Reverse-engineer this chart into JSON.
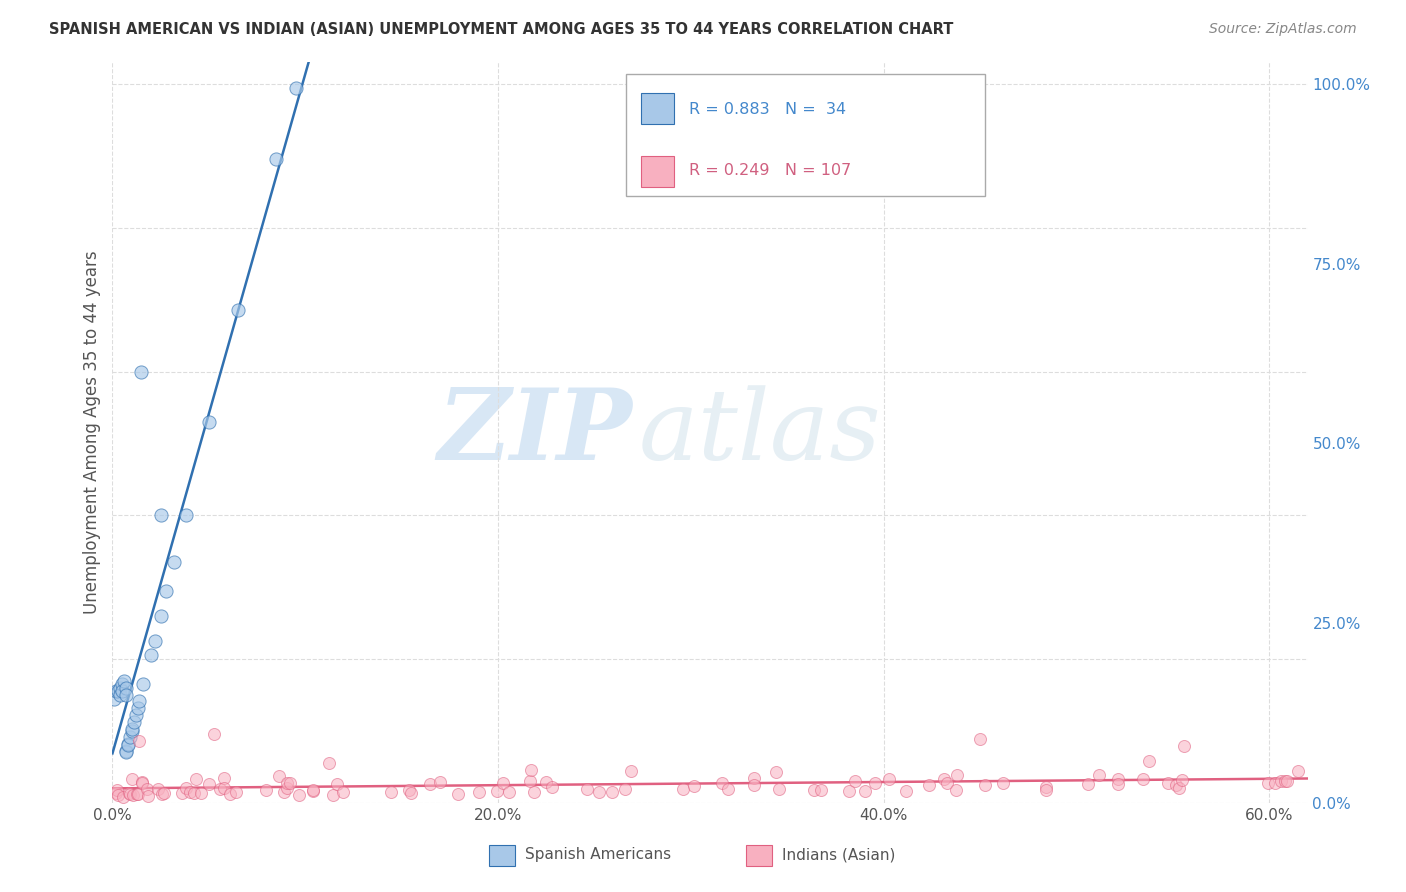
{
  "title": "SPANISH AMERICAN VS INDIAN (ASIAN) UNEMPLOYMENT AMONG AGES 35 TO 44 YEARS CORRELATION CHART",
  "source": "Source: ZipAtlas.com",
  "ylabel": "Unemployment Among Ages 35 to 44 years",
  "xlim": [
    0.0,
    0.62
  ],
  "ylim": [
    0.0,
    1.03
  ],
  "blue_R": 0.883,
  "blue_N": 34,
  "pink_R": 0.249,
  "pink_N": 107,
  "blue_face_color": "#a8c8e8",
  "blue_edge_color": "#3070b0",
  "pink_face_color": "#f8b0c0",
  "pink_edge_color": "#e06080",
  "blue_line_color": "#3070b0",
  "pink_line_color": "#e06080",
  "legend_blue_label": "Spanish Americans",
  "legend_pink_label": "Indians (Asian)",
  "watermark_zip": "ZIP",
  "watermark_atlas": "atlas",
  "grid_color": "#dddddd",
  "bg_color": "#ffffff",
  "title_color": "#333333",
  "source_color": "#888888",
  "axis_color": "#555555",
  "right_axis_color": "#4488cc"
}
